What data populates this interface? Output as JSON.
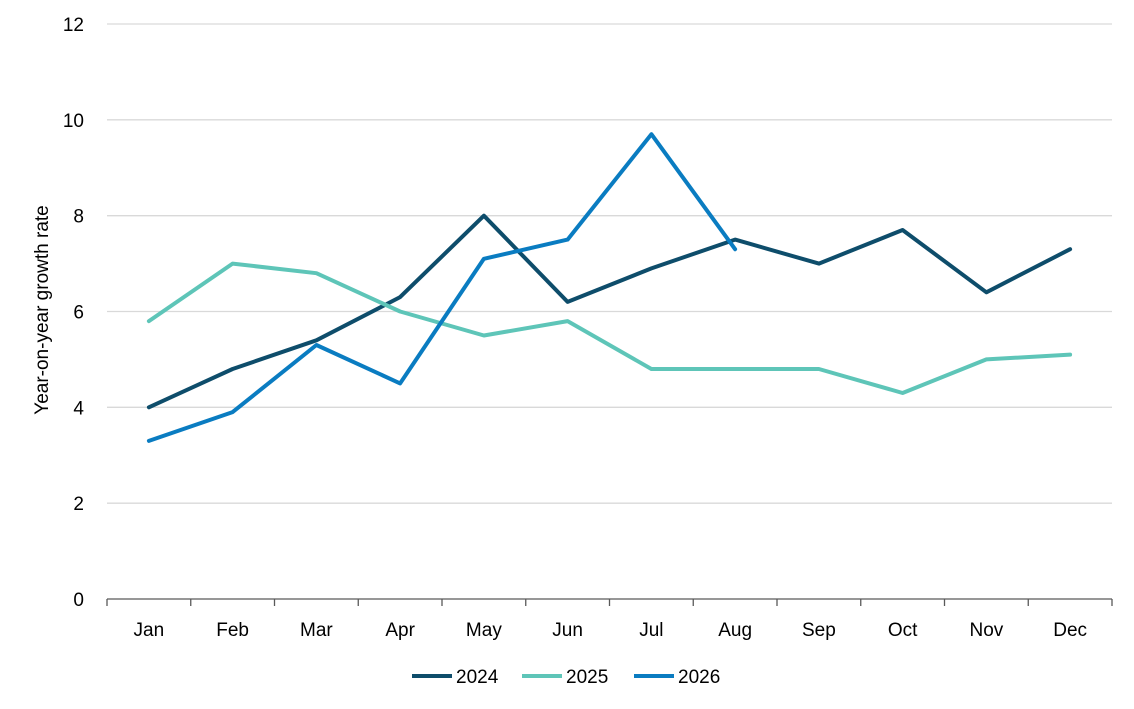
{
  "chart_data": {
    "type": "line",
    "title": "",
    "xlabel": "",
    "ylabel": "Year-on-year growth rate",
    "categories": [
      "Jan",
      "Feb",
      "Mar",
      "Apr",
      "May",
      "Jun",
      "Jul",
      "Aug",
      "Sep",
      "Oct",
      "Nov",
      "Dec"
    ],
    "ylim": [
      0,
      12
    ],
    "yticks": [
      0,
      2,
      4,
      6,
      8,
      10,
      12
    ],
    "grid": true,
    "legend_position": "bottom",
    "series": [
      {
        "name": "2024",
        "color": "#0e4d6b",
        "values": [
          4.0,
          4.8,
          5.4,
          6.3,
          8.0,
          6.2,
          6.9,
          7.5,
          7.0,
          7.7,
          6.4,
          7.3
        ]
      },
      {
        "name": "2025",
        "color": "#5ec5b8",
        "values": [
          5.8,
          7.0,
          6.8,
          6.0,
          5.5,
          5.8,
          4.8,
          4.8,
          4.8,
          4.3,
          5.0,
          5.1
        ]
      },
      {
        "name": "2026",
        "color": "#0a7cc1",
        "values": [
          3.3,
          3.9,
          5.3,
          4.5,
          7.1,
          7.5,
          9.7,
          7.3,
          null,
          null,
          null,
          null
        ]
      }
    ]
  }
}
